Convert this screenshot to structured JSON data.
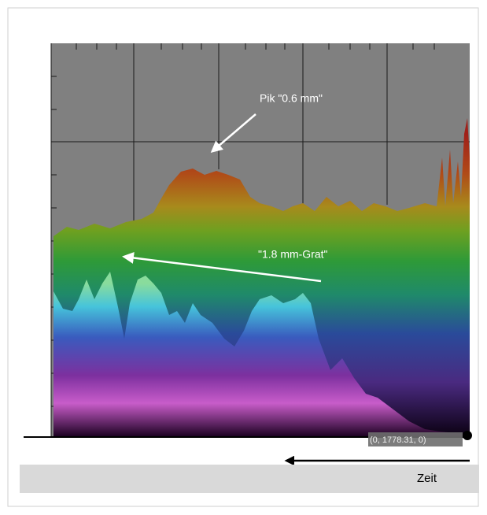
{
  "annotations": {
    "peak": "Pik \"0.6 mm\"",
    "ridge": "\"1.8 mm-Grat\""
  },
  "coordinate_label": "(0, 1778.31, 0)",
  "axis": {
    "time_label": "Zeit"
  }
}
